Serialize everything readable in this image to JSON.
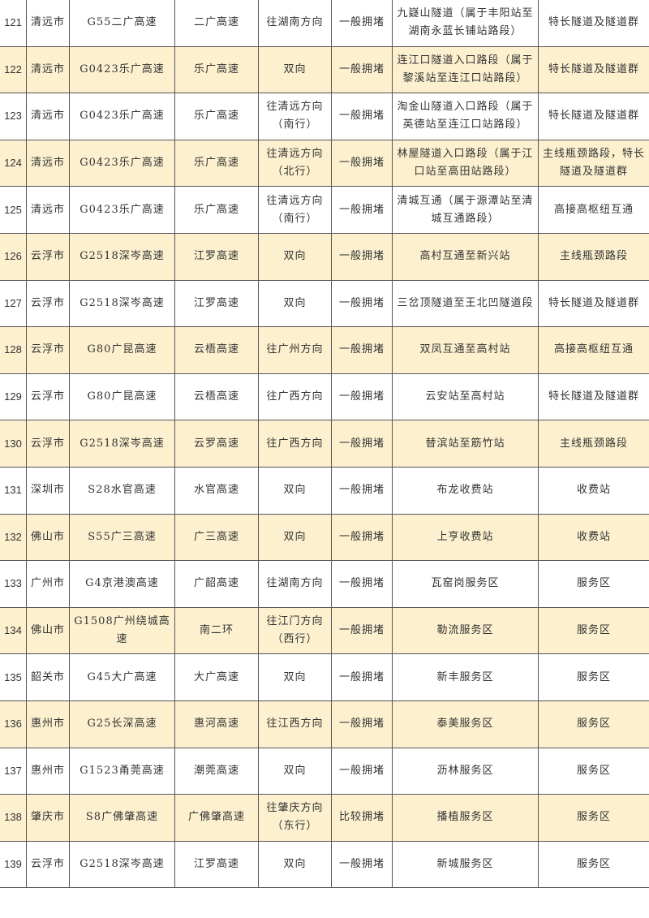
{
  "highlight_color": "#fcf0cf",
  "rows": [
    {
      "no": "121",
      "city": "清远市",
      "road": "G55二广高速",
      "name": "二广高速",
      "dir": "往湖南方向",
      "level": "一般拥堵",
      "loc": "九嶷山隧道（属于丰阳站至湖南永蓝长铺站路段）",
      "type": "特长隧道及隧道群"
    },
    {
      "no": "122",
      "city": "清远市",
      "road": "G0423乐广高速",
      "name": "乐广高速",
      "dir": "双向",
      "level": "一般拥堵",
      "loc": "连江口隧道入口路段（属于黎溪站至连江口站路段）",
      "type": "特长隧道及隧道群"
    },
    {
      "no": "123",
      "city": "清远市",
      "road": "G0423乐广高速",
      "name": "乐广高速",
      "dir": "往清远方向（南行）",
      "level": "一般拥堵",
      "loc": "淘金山隧道入口路段（属于英德站至连江口站路段）",
      "type": "特长隧道及隧道群"
    },
    {
      "no": "124",
      "city": "清远市",
      "road": "G0423乐广高速",
      "name": "乐广高速",
      "dir": "往清远方向（北行）",
      "level": "一般拥堵",
      "loc": "林屋隧道入口路段（属于江口站至高田站路段）",
      "type": "主线瓶颈路段，特长隧道及隧道群"
    },
    {
      "no": "125",
      "city": "清远市",
      "road": "G0423乐广高速",
      "name": "乐广高速",
      "dir": "往清远方向（南行）",
      "level": "一般拥堵",
      "loc": "清城互通（属于源潭站至清城互通路段）",
      "type": "高接高枢纽互通"
    },
    {
      "no": "126",
      "city": "云浮市",
      "road": "G2518深岑高速",
      "name": "江罗高速",
      "dir": "双向",
      "level": "一般拥堵",
      "loc": "高村互通至新兴站",
      "type": "主线瓶颈路段"
    },
    {
      "no": "127",
      "city": "云浮市",
      "road": "G2518深岑高速",
      "name": "江罗高速",
      "dir": "双向",
      "level": "一般拥堵",
      "loc": "三岔顶隧道至王北凹隧道段",
      "type": "特长隧道及隧道群"
    },
    {
      "no": "128",
      "city": "云浮市",
      "road": "G80广昆高速",
      "name": "云梧高速",
      "dir": "往广州方向",
      "level": "一般拥堵",
      "loc": "双凤互通至高村站",
      "type": "高接高枢纽互通"
    },
    {
      "no": "129",
      "city": "云浮市",
      "road": "G80广昆高速",
      "name": "云梧高速",
      "dir": "往广西方向",
      "level": "一般拥堵",
      "loc": "云安站至高村站",
      "type": "特长隧道及隧道群"
    },
    {
      "no": "130",
      "city": "云浮市",
      "road": "G2518深岑高速",
      "name": "云罗高速",
      "dir": "往广西方向",
      "level": "一般拥堵",
      "loc": "替滨站至筋竹站",
      "type": "主线瓶颈路段"
    },
    {
      "no": "131",
      "city": "深圳市",
      "road": "S28水官高速",
      "name": "水官高速",
      "dir": "双向",
      "level": "一般拥堵",
      "loc": "布龙收费站",
      "type": "收费站"
    },
    {
      "no": "132",
      "city": "佛山市",
      "road": "S55广三高速",
      "name": "广三高速",
      "dir": "双向",
      "level": "一般拥堵",
      "loc": "上亨收费站",
      "type": "收费站"
    },
    {
      "no": "133",
      "city": "广州市",
      "road": "G4京港澳高速",
      "name": "广韶高速",
      "dir": "往湖南方向",
      "level": "一般拥堵",
      "loc": "瓦窑岗服务区",
      "type": "服务区"
    },
    {
      "no": "134",
      "city": "佛山市",
      "road": "G1508广州绕城高速",
      "name": "南二环",
      "dir": "往江门方向（西行）",
      "level": "一般拥堵",
      "loc": "勒流服务区",
      "type": "服务区"
    },
    {
      "no": "135",
      "city": "韶关市",
      "road": "G45大广高速",
      "name": "大广高速",
      "dir": "双向",
      "level": "一般拥堵",
      "loc": "新丰服务区",
      "type": "服务区"
    },
    {
      "no": "136",
      "city": "惠州市",
      "road": "G25长深高速",
      "name": "惠河高速",
      "dir": "往江西方向",
      "level": "一般拥堵",
      "loc": "泰美服务区",
      "type": "服务区"
    },
    {
      "no": "137",
      "city": "惠州市",
      "road": "G1523甬莞高速",
      "name": "潮莞高速",
      "dir": "双向",
      "level": "一般拥堵",
      "loc": "沥林服务区",
      "type": "服务区"
    },
    {
      "no": "138",
      "city": "肇庆市",
      "road": "S8广佛肇高速",
      "name": "广佛肇高速",
      "dir": "往肇庆方向（东行）",
      "level": "比较拥堵",
      "loc": "播植服务区",
      "type": "服务区"
    },
    {
      "no": "139",
      "city": "云浮市",
      "road": "G2518深岑高速",
      "name": "江罗高速",
      "dir": "双向",
      "level": "一般拥堵",
      "loc": "新城服务区",
      "type": "服务区"
    }
  ]
}
